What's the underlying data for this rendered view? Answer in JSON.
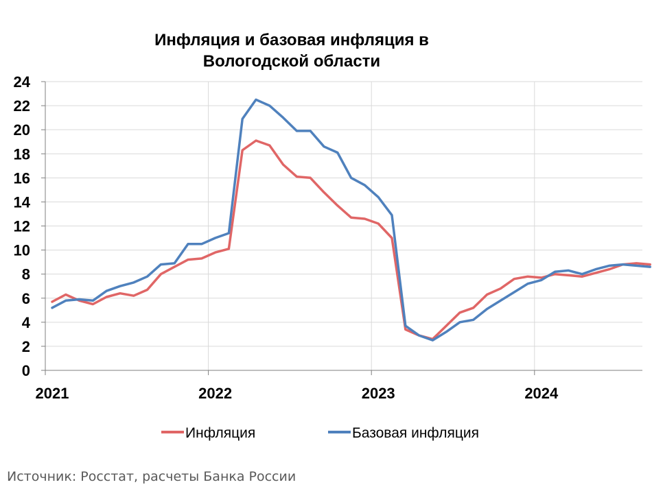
{
  "chart_data": {
    "type": "line",
    "title": [
      "Инфляция и базовая инфляция в",
      "Вологодской области"
    ],
    "xlabel": "",
    "ylabel": "",
    "ylim": [
      0,
      24
    ],
    "y_ticks": [
      "0",
      "2",
      "4",
      "6",
      "8",
      "10",
      "12",
      "14",
      "16",
      "18",
      "20",
      "22",
      "24"
    ],
    "x_tick_labels": [
      "2021",
      "2022",
      "2023",
      "2024"
    ],
    "x_start": "2021-01",
    "grid": true,
    "legend_position": "bottom",
    "series": [
      {
        "name": "Инфляция",
        "color": "#E06666",
        "values": [
          5.7,
          6.3,
          5.8,
          5.5,
          6.1,
          6.4,
          6.2,
          6.7,
          8.0,
          8.6,
          9.2,
          9.3,
          9.8,
          10.1,
          18.3,
          19.1,
          18.7,
          17.1,
          16.1,
          16.0,
          14.8,
          13.7,
          12.7,
          12.6,
          12.2,
          11.0,
          3.4,
          2.9,
          2.6,
          3.7,
          4.8,
          5.2,
          6.3,
          6.8,
          7.6,
          7.8,
          7.7,
          8.0,
          7.9,
          7.8,
          8.1,
          8.4,
          8.8,
          8.9,
          8.8
        ]
      },
      {
        "name": "Базовая инфляция",
        "color": "#4F81BD",
        "values": [
          5.2,
          5.8,
          5.9,
          5.8,
          6.6,
          7.0,
          7.3,
          7.8,
          8.8,
          8.9,
          10.5,
          10.5,
          11.0,
          11.4,
          20.9,
          22.5,
          22.0,
          21.0,
          19.9,
          19.9,
          18.6,
          18.1,
          16.0,
          15.4,
          14.4,
          12.9,
          3.7,
          2.9,
          2.5,
          3.2,
          4.0,
          4.2,
          5.1,
          5.8,
          6.5,
          7.2,
          7.5,
          8.2,
          8.3,
          8.0,
          8.4,
          8.7,
          8.8,
          8.7,
          8.6
        ]
      }
    ]
  },
  "source": "Источник: Росстат, расчеты Банка России"
}
